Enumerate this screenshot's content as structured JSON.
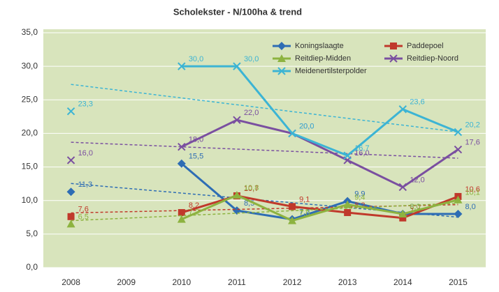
{
  "chart_data": {
    "type": "line",
    "title": "Scholekster - N/100ha & trend",
    "categories": [
      "2008",
      "2009",
      "2010",
      "2011",
      "2012",
      "2013",
      "2014",
      "2015"
    ],
    "ylim": [
      0,
      35
    ],
    "yticks": [
      {
        "value": 0,
        "label": "0,0"
      },
      {
        "value": 5,
        "label": "5,0"
      },
      {
        "value": 10,
        "label": "10,0"
      },
      {
        "value": 15,
        "label": "15,0"
      },
      {
        "value": 20,
        "label": "20,0"
      },
      {
        "value": 25,
        "label": "25,0"
      },
      {
        "value": 30,
        "label": "30,0"
      },
      {
        "value": 35,
        "label": "35,0"
      }
    ],
    "grid": true,
    "trendline": true,
    "legend": "top-right",
    "series": [
      {
        "name": "Koningslaagte",
        "color": "#2e6db4",
        "marker": "diamond",
        "values": [
          11.3,
          null,
          15.5,
          8.5,
          7.2,
          9.9,
          8.0,
          8.0
        ],
        "value_labels": [
          "11,3",
          null,
          "15,5",
          "8,5",
          "7,2",
          "9,9",
          "8,0",
          "8,0"
        ]
      },
      {
        "name": "Paddepoel",
        "color": "#c0392b",
        "marker": "square",
        "values": [
          7.6,
          null,
          8.2,
          10.7,
          9.1,
          8.2,
          7.4,
          10.6
        ],
        "value_labels": [
          "7,6",
          null,
          "8,2",
          "10,7",
          "9,1",
          "8,2",
          "7,4",
          "10,6"
        ]
      },
      {
        "name": "Reitdiep-Midden",
        "color": "#8db340",
        "marker": "triangle",
        "values": [
          6.5,
          null,
          7.2,
          10.8,
          7.0,
          9.4,
          8.0,
          10.1
        ],
        "value_labels": [
          "6,5",
          null,
          "7,2",
          "10,8",
          "7,0",
          "9,4",
          "8,0",
          "10,1"
        ]
      },
      {
        "name": "Reitdiep-Noord",
        "color": "#7a4fa0",
        "marker": "x",
        "values": [
          16.0,
          null,
          18.0,
          22.0,
          20.0,
          16.0,
          12.0,
          17.6
        ],
        "value_labels": [
          "16,0",
          null,
          "18,0",
          "22,0",
          "20,0",
          "16,0",
          "12,0",
          "17,6"
        ]
      },
      {
        "name": "Meidenertilsterpolder",
        "color": "#3cb4d4",
        "marker": "x",
        "values": [
          23.3,
          null,
          30.0,
          30.0,
          20.0,
          16.7,
          23.6,
          20.2
        ],
        "value_labels": [
          "23,3",
          null,
          "30,0",
          "30,0",
          "20,0",
          "16,7",
          "23,6",
          "20,2"
        ]
      }
    ]
  }
}
